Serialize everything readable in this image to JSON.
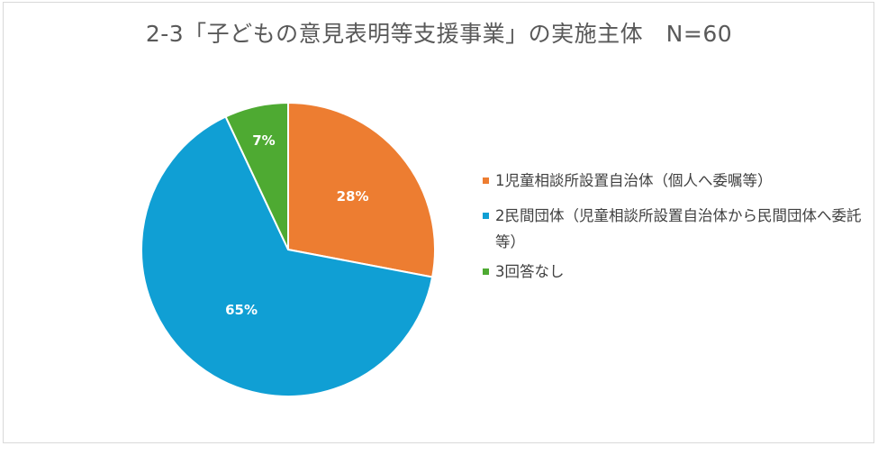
{
  "chart_data": {
    "type": "pie",
    "title": "2-3「子どもの意見表明等支援事業」の実施主体　N=60",
    "categories": [
      "1児童相談所設置自治体（個人へ委嘱等）",
      "2民間団体（児童相談所設置自治体から民間団体へ委託等）",
      "3回答なし"
    ],
    "values": [
      28,
      65,
      7
    ],
    "value_labels": [
      "28%",
      "65%",
      "7%"
    ],
    "colors": [
      "#ED7D31",
      "#109FD4",
      "#4EAA32"
    ],
    "legend": "right"
  }
}
